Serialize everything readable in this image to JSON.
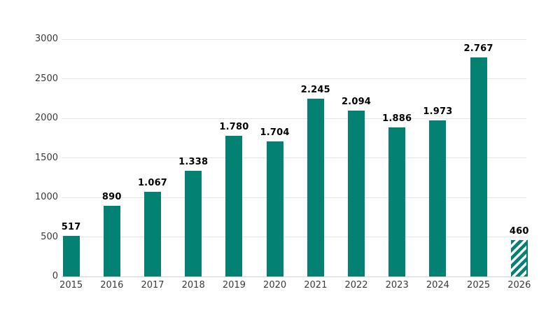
{
  "chart_data": {
    "type": "bar",
    "title": "",
    "xlabel": "",
    "ylabel": "",
    "categories": [
      "2015",
      "2016",
      "2017",
      "2018",
      "2019",
      "2020",
      "2021",
      "2022",
      "2023",
      "2024",
      "2025",
      "2026"
    ],
    "values": [
      517,
      890,
      1067,
      1338,
      1780,
      1704,
      2245,
      2094,
      1886,
      1973,
      2767,
      460
    ],
    "value_labels": [
      "517",
      "890",
      "1.067",
      "1.338",
      "1.780",
      "1.704",
      "2.245",
      "2.094",
      "1.886",
      "1.973",
      "2.767",
      "460"
    ],
    "hatched": [
      false,
      false,
      false,
      false,
      false,
      false,
      false,
      false,
      false,
      false,
      false,
      true
    ],
    "ylim": [
      0,
      3000
    ],
    "yticks": [
      0,
      500,
      1000,
      1500,
      2000,
      2500,
      3000
    ],
    "grid": true,
    "legend": "none",
    "colors": {
      "bar": "#038273",
      "grid": "#e5e5e5",
      "axis_line": "#d4d4d4",
      "tick_label": "#3a3a3a",
      "value_label": "#000000",
      "background": "#ffffff"
    }
  }
}
